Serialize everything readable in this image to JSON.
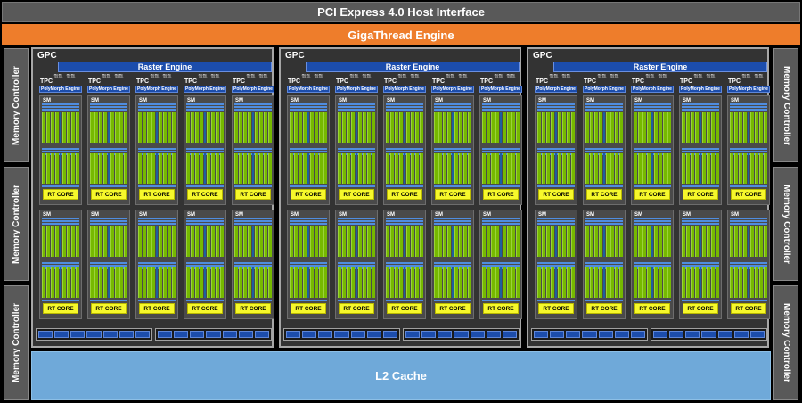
{
  "pcie": "PCI Express 4.0 Host Interface",
  "gigathread": "GigaThread Engine",
  "l2": "L2 Cache",
  "memory_controller": "Memory Controller",
  "gpc_label": "GPC",
  "raster": "Raster Engine",
  "tpc_label": "TPC",
  "polymorph": "PolyMorph Engine",
  "sm_label": "SM",
  "rt_core": "RT CORE",
  "counts": {
    "gpcs": 3,
    "tpcs_per_gpc": 5,
    "sms_per_tpc": 2,
    "memory_controllers_per_side": 3,
    "bus_segments_per_bar": 7
  },
  "colors": {
    "background": "#000000",
    "interface": "#595959",
    "gigathread": "#ee7d2b",
    "l2": "#6fa9d9",
    "engine_blue": "#1c4dac",
    "cuda_green": "#76b900",
    "rt_yellow": "#f6f82b"
  }
}
